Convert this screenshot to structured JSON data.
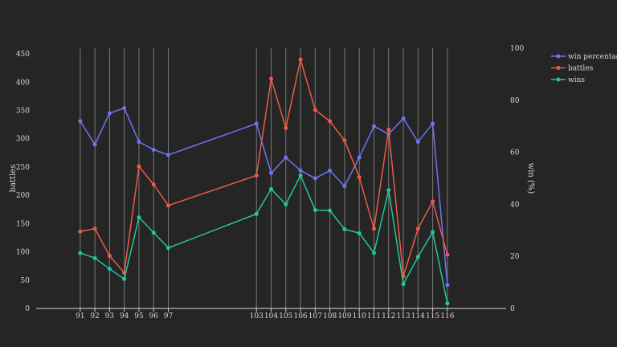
{
  "chart_data": {
    "type": "line",
    "x": [
      91,
      92,
      93,
      94,
      95,
      96,
      97,
      103,
      104,
      105,
      106,
      107,
      108,
      109,
      110,
      111,
      112,
      113,
      114,
      115,
      116
    ],
    "xticks": [
      "91",
      "92",
      "93",
      "94",
      "95",
      "96",
      "97",
      "103",
      "104",
      "105",
      "106",
      "107",
      "108",
      "109",
      "110",
      "111",
      "112",
      "113",
      "114",
      "115",
      "116"
    ],
    "xlim": [
      88,
      120
    ],
    "y_left": {
      "label": "battles",
      "lim": [
        0,
        460
      ],
      "ticks": [
        "0",
        "50",
        "100",
        "150",
        "200",
        "250",
        "300",
        "350",
        "400",
        "450"
      ]
    },
    "y_right": {
      "label": "win (%)",
      "lim": [
        0,
        100
      ],
      "ticks": [
        "0",
        "20",
        "40",
        "60",
        "80",
        "100"
      ]
    },
    "series": [
      {
        "name": "win percentage",
        "axis": "right",
        "color": "#6f74f2",
        "values": [
          72,
          63,
          75,
          77,
          64,
          61,
          59,
          71,
          52,
          58,
          53,
          50,
          53,
          47,
          58,
          70,
          67,
          73,
          64,
          71,
          9
        ]
      },
      {
        "name": "battles",
        "axis": "left",
        "color": "#ee5a45",
        "values": [
          136,
          141,
          93,
          63,
          251,
          219,
          182,
          235,
          406,
          319,
          440,
          351,
          331,
          297,
          232,
          141,
          316,
          57,
          141,
          189,
          95
        ]
      },
      {
        "name": "wins",
        "axis": "left",
        "color": "#20c997",
        "values": [
          98,
          89,
          70,
          52,
          161,
          134,
          107,
          167,
          211,
          184,
          235,
          174,
          173,
          140,
          133,
          98,
          209,
          43,
          91,
          135,
          9
        ]
      }
    ],
    "legend_position": "top-right",
    "grid": "vertical"
  }
}
